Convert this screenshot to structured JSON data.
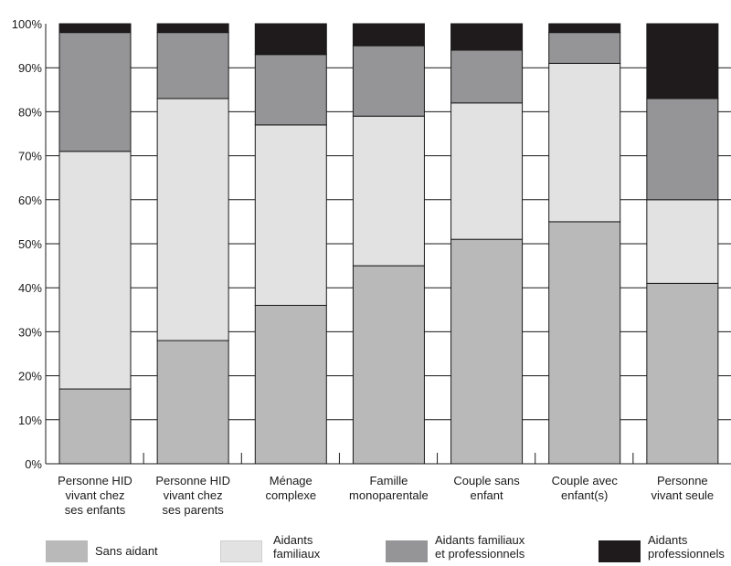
{
  "chart_data": {
    "type": "bar",
    "stacked": true,
    "categories": [
      "Personne HID\nvivant chez\nses enfants",
      "Personne HID\nvivant chez\nses parents",
      "Ménage\ncomplexe",
      "Famille\nmonoparentale",
      "Couple sans\nenfant",
      "Couple avec\nenfant(s)",
      "Personne\nvivant seule"
    ],
    "series": [
      {
        "name": "Sans aidant",
        "color": "#b9b9b9",
        "values": [
          17,
          28,
          36,
          45,
          51,
          55,
          41
        ]
      },
      {
        "name": "Aidants\nfamiliaux",
        "color": "#e2e2e2",
        "values": [
          54,
          55,
          41,
          34,
          31,
          36,
          19
        ]
      },
      {
        "name": "Aidants familiaux\net professionnels",
        "color": "#959597",
        "values": [
          27,
          15,
          16,
          16,
          12,
          7,
          23
        ]
      },
      {
        "name": "Aidants\nprofessionnels",
        "color": "#1f1a1b",
        "values": [
          2,
          2,
          7,
          5,
          6,
          2,
          17
        ]
      }
    ],
    "yticks": [
      "0%",
      "10%",
      "20%",
      "30%",
      "40%",
      "50%",
      "60%",
      "70%",
      "80%",
      "90%",
      "100%"
    ],
    "ylim": [
      0,
      100
    ],
    "grid": true,
    "legend": "bottom"
  }
}
